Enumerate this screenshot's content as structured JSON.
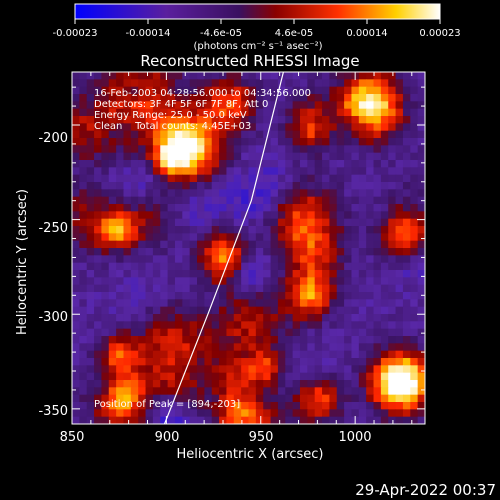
{
  "colorbar": {
    "ticks": [
      "-0.00023",
      "-0.00014",
      "-4.6e-05",
      "4.6e-05",
      "0.00014",
      "0.00023"
    ],
    "unit_label": "(photons cm⁻² s⁻¹ asec⁻²)",
    "range": [
      -0.00023,
      0.00023
    ]
  },
  "chart_data": {
    "type": "heatmap",
    "title": "Reconstructed RHESSI Image",
    "xlabel": "Heliocentric X (arcsec)",
    "ylabel": "Heliocentric Y (arcsec)",
    "xlim": [
      850,
      1037
    ],
    "ylim": [
      -358,
      -172
    ],
    "x_ticks": [
      "850",
      "900",
      "950",
      "1000"
    ],
    "y_ticks": [
      "-200",
      "-250",
      "-300",
      "-350"
    ],
    "colormap": "blue-purple-red-yellow-white",
    "annotations": [
      "16-Feb-2003 04:28:56.000 to 04:34:56.000",
      "Detectors: 3F 4F 5F 6F 7F 8F, Att 0",
      "Energy Range: 25.0 - 50.0 keV",
      "Clean    Total counts: 4.45E+03"
    ],
    "peak_label": "Position of Peak = [894,-203]",
    "peak": [
      894,
      -203
    ],
    "limb_points": [
      [
        899,
        -358
      ],
      [
        922,
        -300
      ],
      [
        945,
        -240
      ],
      [
        962,
        -172
      ]
    ]
  },
  "timestamp": "29-Apr-2022 00:37"
}
